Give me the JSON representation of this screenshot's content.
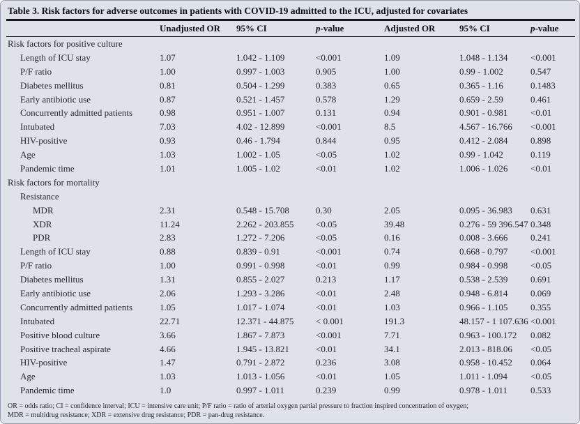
{
  "title": "Table 3. Risk factors for adverse outcomes in patients with COVID-19 admitted to the ICU, adjusted for covariates",
  "colors": {
    "panel_background": "#e0e2ea",
    "rule": "#14161c",
    "text": "#23262e"
  },
  "columns": {
    "unadjusted_or": "Unadjusted OR",
    "ci": "95% CI",
    "p_italic": "p",
    "p_rest": "-value",
    "adjusted_or": "Adjusted OR"
  },
  "rows": [
    {
      "label": "Risk factors for positive culture",
      "indent": 0,
      "section": true,
      "values": [
        "",
        "",
        "",
        "",
        "",
        ""
      ]
    },
    {
      "label": "Length of ICU stay",
      "indent": 1,
      "section": false,
      "values": [
        "1.07",
        "1.042 - 1.109",
        "<0.001",
        "1.09",
        "1.048 - 1.134",
        "<0.001"
      ]
    },
    {
      "label": "P/F ratio",
      "indent": 1,
      "section": false,
      "values": [
        "1.00",
        "0.997 - 1.003",
        "0.905",
        "1.00",
        "0.99 - 1.002",
        "0.547"
      ]
    },
    {
      "label": "Diabetes mellitus",
      "indent": 1,
      "section": false,
      "values": [
        "0.81",
        "0.504 - 1.299",
        "0.383",
        "0.65",
        "0.365 - 1.16",
        "0.1483"
      ]
    },
    {
      "label": "Early antibiotic use",
      "indent": 1,
      "section": false,
      "values": [
        "0.87",
        "0.521 - 1.457",
        "0.578",
        "1.29",
        "0.659 - 2.59",
        "0.461"
      ]
    },
    {
      "label": "Concurrently admitted patients",
      "indent": 1,
      "section": false,
      "values": [
        "0.98",
        "0.951 - 1.007",
        "0.131",
        "0.94",
        "0.901 - 0.981",
        "<0.01"
      ]
    },
    {
      "label": "Intubated",
      "indent": 1,
      "section": false,
      "values": [
        "7.03",
        "4.02 - 12.899",
        "<0.001",
        "8.5",
        "4.567 - 16.766",
        "<0.001"
      ]
    },
    {
      "label": "HIV-positive",
      "indent": 1,
      "section": false,
      "values": [
        "0.93",
        "0.46 - 1.794",
        "0.844",
        "0.95",
        "0.412 - 2.084",
        "0.898"
      ]
    },
    {
      "label": "Age",
      "indent": 1,
      "section": false,
      "values": [
        "1.03",
        "1.002 - 1.05",
        "<0.05",
        "1.02",
        "0.99 - 1.042",
        "0.119"
      ]
    },
    {
      "label": "Pandemic time",
      "indent": 1,
      "section": false,
      "values": [
        "1.01",
        "1.005 - 1.02",
        "<0.01",
        "1.02",
        "1.006 - 1.026",
        "<0.01"
      ]
    },
    {
      "label": "Risk factors for mortality",
      "indent": 0,
      "section": true,
      "values": [
        "",
        "",
        "",
        "",
        "",
        ""
      ]
    },
    {
      "label": "Resistance",
      "indent": 1,
      "section": false,
      "values": [
        "",
        "",
        "",
        "",
        "",
        ""
      ]
    },
    {
      "label": "MDR",
      "indent": 2,
      "section": false,
      "values": [
        "2.31",
        "0.548 - 15.708",
        "0.30",
        "2.05",
        "0.095 - 36.983",
        "0.631"
      ]
    },
    {
      "label": "XDR",
      "indent": 2,
      "section": false,
      "values": [
        "11.24",
        "2.262 - 203.855",
        "<0.05",
        "39.48",
        "0.276 - 59 396.547",
        "0.348"
      ]
    },
    {
      "label": "PDR",
      "indent": 2,
      "section": false,
      "values": [
        "2.83",
        "1.272 - 7.206",
        "<0.05",
        "0.16",
        "0.008 - 3.666",
        "0.241"
      ]
    },
    {
      "label": "Length of ICU stay",
      "indent": 1,
      "section": false,
      "values": [
        "0.88",
        "0.839 - 0.91",
        "<0.001",
        "0.74",
        "0.668 - 0.797",
        "<0.001"
      ]
    },
    {
      "label": "P/F ratio",
      "indent": 1,
      "section": false,
      "values": [
        "1.00",
        "0.991 - 0.998",
        "<0.01",
        "0.99",
        "0.984 - 0.998",
        "<0.05"
      ]
    },
    {
      "label": "Diabetes mellitus",
      "indent": 1,
      "section": false,
      "values": [
        "1.31",
        "0.855 - 2.027",
        "0.213",
        "1.17",
        "0.538 - 2.539",
        "0.691"
      ]
    },
    {
      "label": "Early antibiotic use",
      "indent": 1,
      "section": false,
      "values": [
        "2.06",
        "1.293 - 3.286",
        "<0.01",
        "2.48",
        "0.948 - 6.814",
        "0.069"
      ]
    },
    {
      "label": "Concurrently admitted patients",
      "indent": 1,
      "section": false,
      "values": [
        "1.05",
        "1.017 - 1.074",
        "<0.01",
        "1.03",
        "0.966 - 1.105",
        "0.355"
      ]
    },
    {
      "label": "Intubated",
      "indent": 1,
      "section": false,
      "values": [
        "22.71",
        "12.371 - 44.875",
        "< 0.001",
        "191.3",
        "48.157 - 1 107.636",
        "<0.001"
      ]
    },
    {
      "label": "Positive blood culture",
      "indent": 1,
      "section": false,
      "values": [
        "3.66",
        "1.867 - 7.873",
        "<0.001",
        "7.71",
        "0.963 - 100.172",
        "0.082"
      ]
    },
    {
      "label": "Positive tracheal aspirate",
      "indent": 1,
      "section": false,
      "values": [
        "4.66",
        "1.945 - 13.821",
        "<0.01",
        "34.1",
        "2.013 - 818.06",
        "<0.05"
      ]
    },
    {
      "label": "HIV-positive",
      "indent": 1,
      "section": false,
      "values": [
        "1.47",
        "0.791 - 2.872",
        "0.236",
        "3.08",
        "0.958 - 10.452",
        "0.064"
      ]
    },
    {
      "label": "Age",
      "indent": 1,
      "section": false,
      "values": [
        "1.03",
        "1.013 - 1.056",
        "<0.01",
        "1.05",
        "1.011 - 1.094",
        "<0.05"
      ]
    },
    {
      "label": "Pandemic time",
      "indent": 1,
      "section": false,
      "values": [
        "1.0",
        "0.997 - 1.011",
        "0.239",
        "0.99",
        "0.978 - 1.011",
        "0.533"
      ]
    }
  ],
  "footnotes": [
    "OR = odds ratio; CI = confidence interval; ICU = intensive care unit; P/F ratio = ratio of arterial oxygen partial pressure to fraction inspired concentration of oxygen;",
    "MDR = multidrug resistance; XDR = extensive drug resistance; PDR = pan-drug resistance."
  ]
}
